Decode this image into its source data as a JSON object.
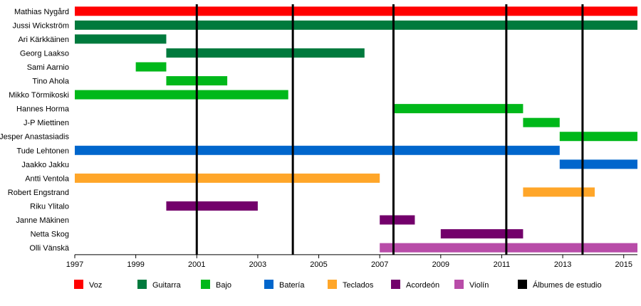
{
  "chart_data": {
    "type": "timeline",
    "title": "",
    "xlabel": "",
    "ylabel": "",
    "xlim": [
      1997,
      2015.45
    ],
    "x_ticks": [
      "1997",
      "1999",
      "2001",
      "2003",
      "2005",
      "2007",
      "2009",
      "2011",
      "2013",
      "2015"
    ],
    "grid": false,
    "legend_position": "bottom",
    "roles": [
      {
        "name": "Voz",
        "color": "#ff0000"
      },
      {
        "name": "Guitarra",
        "color": "#007a3d"
      },
      {
        "name": "Bajo",
        "color": "#00b81a"
      },
      {
        "name": "Batería",
        "color": "#0066cc"
      },
      {
        "name": "Teclados",
        "color": "#ffa629"
      },
      {
        "name": "Acordeón",
        "color": "#73006b"
      },
      {
        "name": "Violín",
        "color": "#b84ca8"
      },
      {
        "name": "Álbumes de estudio",
        "color": "#000000"
      }
    ],
    "members": [
      {
        "name": "Mathias Nygård",
        "periods": [
          {
            "role": "Voz",
            "start": 1997,
            "end": 2015.45
          }
        ]
      },
      {
        "name": "Jussi Wickström",
        "periods": [
          {
            "role": "Guitarra",
            "start": 1997,
            "end": 2015.45
          }
        ]
      },
      {
        "name": "Ari Kärkkäinen",
        "periods": [
          {
            "role": "Guitarra",
            "start": 1997,
            "end": 2000
          }
        ]
      },
      {
        "name": "Georg Laakso",
        "periods": [
          {
            "role": "Guitarra",
            "start": 2000,
            "end": 2006.5
          }
        ]
      },
      {
        "name": "Sami Aarnio",
        "periods": [
          {
            "role": "Bajo",
            "start": 1999,
            "end": 2000
          }
        ]
      },
      {
        "name": "Tino Ahola",
        "periods": [
          {
            "role": "Bajo",
            "start": 2000,
            "end": 2002
          }
        ]
      },
      {
        "name": "Mikko Törmikoski",
        "periods": [
          {
            "role": "Bajo",
            "start": 1997,
            "end": 2004
          }
        ]
      },
      {
        "name": "Hannes Horma",
        "periods": [
          {
            "role": "Bajo",
            "start": 2007.45,
            "end": 2011.7
          }
        ]
      },
      {
        "name": "J-P Miettinen",
        "periods": [
          {
            "role": "Bajo",
            "start": 2011.7,
            "end": 2012.9
          }
        ]
      },
      {
        "name": "Jesper Anastasiadis",
        "periods": [
          {
            "role": "Bajo",
            "start": 2012.9,
            "end": 2015.45
          }
        ]
      },
      {
        "name": "Tude Lehtonen",
        "periods": [
          {
            "role": "Batería",
            "start": 1997,
            "end": 2012.9
          }
        ]
      },
      {
        "name": "Jaakko Jakku",
        "periods": [
          {
            "role": "Batería",
            "start": 2012.9,
            "end": 2015.45
          }
        ]
      },
      {
        "name": "Antti Ventola",
        "periods": [
          {
            "role": "Teclados",
            "start": 1997,
            "end": 2007
          }
        ]
      },
      {
        "name": "Robert Engstrand",
        "periods": [
          {
            "role": "Teclados",
            "start": 2011.7,
            "end": 2014.05
          }
        ]
      },
      {
        "name": "Riku Ylitalo",
        "periods": [
          {
            "role": "Acordeón",
            "start": 2000,
            "end": 2003
          }
        ]
      },
      {
        "name": "Janne Mäkinen",
        "periods": [
          {
            "role": "Acordeón",
            "start": 2007,
            "end": 2008.15
          }
        ]
      },
      {
        "name": "Netta Skog",
        "periods": [
          {
            "role": "Acordeón",
            "start": 2009,
            "end": 2011.7
          }
        ]
      },
      {
        "name": "Olli Vänskä",
        "periods": [
          {
            "role": "Violín",
            "start": 2007,
            "end": 2015.45
          }
        ]
      }
    ],
    "albums": [
      2001,
      2004.15,
      2007.45,
      2011.15,
      2013.65
    ]
  }
}
